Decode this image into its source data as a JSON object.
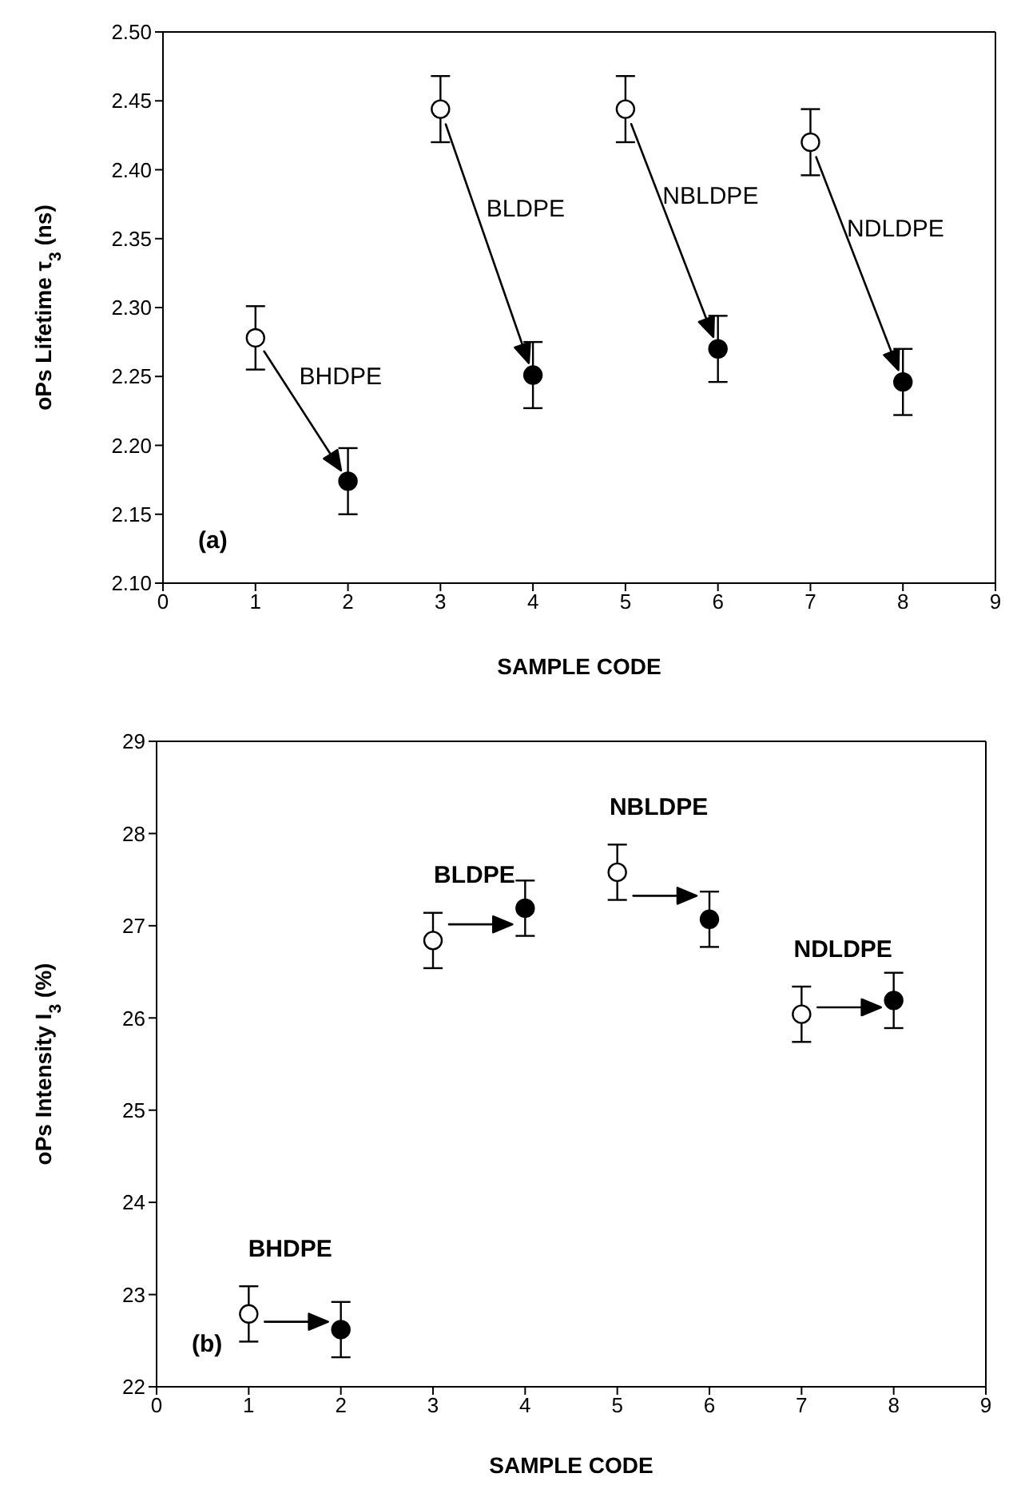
{
  "chart_data": [
    {
      "type": "scatter",
      "xlabel": "SAMPLE CODE",
      "ylabel": "oPs Lifetime τ$_{3}$ (ns)",
      "xlim": [
        0,
        9
      ],
      "xticks": [
        0,
        1,
        2,
        3,
        4,
        5,
        6,
        7,
        8,
        9
      ],
      "ylim": [
        2.1,
        2.5
      ],
      "yticks": [
        {
          "value": 2.1,
          "label": "2.10"
        },
        {
          "value": 2.15,
          "label": "2.15"
        },
        {
          "value": 2.2,
          "label": "2.20"
        },
        {
          "value": 2.25,
          "label": "2.25"
        },
        {
          "value": 2.3,
          "label": "2.30"
        },
        {
          "value": 2.35,
          "label": "2.35"
        },
        {
          "value": 2.4,
          "label": "2.40"
        },
        {
          "value": 2.45,
          "label": "2.45"
        },
        {
          "value": 2.5,
          "label": "2.50"
        }
      ],
      "grid": false,
      "legend": false,
      "marker": "circle",
      "series": [
        {
          "color": "#ffffff",
          "x": [
            1,
            3,
            5,
            7
          ],
          "values": [
            2.278,
            2.444,
            2.444,
            2.42
          ],
          "errors": [
            0.023,
            0.024,
            0.024,
            0.024
          ]
        },
        {
          "color": "#000000",
          "x": [
            2,
            4,
            6,
            8
          ],
          "values": [
            2.174,
            2.251,
            2.27,
            2.246
          ],
          "errors": [
            0.024,
            0.024,
            0.024,
            0.024
          ]
        }
      ],
      "annotations": [
        "BHDPE",
        "BLDPE",
        "NBLDPE",
        "NDLDPE",
        "(a)"
      ]
    },
    {
      "type": "scatter",
      "xlabel": "SAMPLE CODE",
      "ylabel": "oPs Intensity I$_{3}$ (%)",
      "xlim": [
        0,
        9
      ],
      "xticks": [
        0,
        1,
        2,
        3,
        4,
        5,
        6,
        7,
        8,
        9
      ],
      "ylim": [
        22,
        29
      ],
      "yticks": [
        22,
        23,
        24,
        25,
        26,
        27,
        28,
        29
      ],
      "grid": false,
      "legend": false,
      "marker": "circle",
      "series": [
        {
          "color": "#ffffff",
          "x": [
            1,
            3,
            5,
            7
          ],
          "values": [
            22.79,
            26.84,
            27.58,
            26.04
          ],
          "errors": [
            0.3,
            0.3,
            0.3,
            0.3
          ]
        },
        {
          "color": "#000000",
          "x": [
            2,
            4,
            6,
            8
          ],
          "values": [
            22.62,
            27.19,
            27.07,
            26.19
          ],
          "errors": [
            0.3,
            0.3,
            0.3,
            0.3
          ]
        }
      ],
      "annotations": [
        "BHDPE",
        "BLDPE",
        "NBLDPE",
        "NDLDPE",
        "(b)"
      ]
    }
  ]
}
